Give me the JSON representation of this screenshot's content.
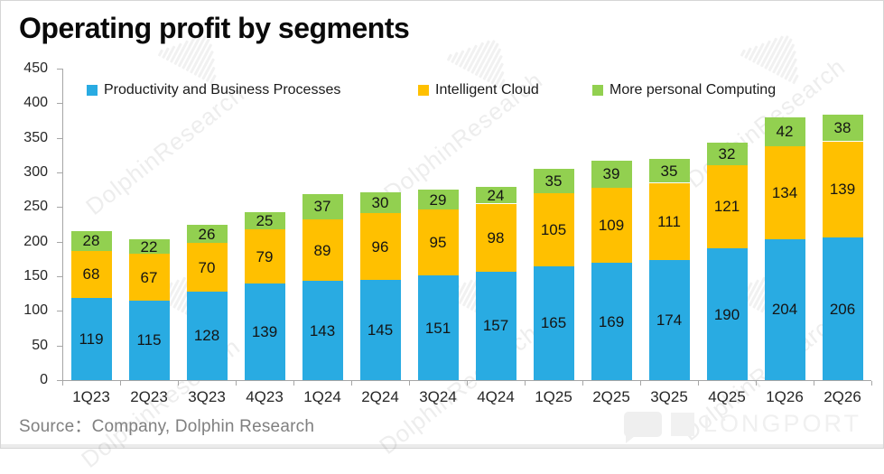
{
  "title": "Operating profit by segments",
  "source": "Source：Company, Dolphin Research",
  "brand": {
    "name": "LONGPORT"
  },
  "watermark": {
    "text": "DolphinResearch",
    "logo": "dolphin-fan-logo"
  },
  "colors": {
    "blue": "#29ABE2",
    "yellow": "#FFC000",
    "green": "#92D050",
    "axis": "#A6A6A6",
    "label": "#141414",
    "source_text": "#808080"
  },
  "chart_data": {
    "type": "bar",
    "stacked": true,
    "title": "Operating profit by segments",
    "xlabel": "",
    "ylabel": "",
    "ylim": [
      0,
      450
    ],
    "ytick_step": 50,
    "grid": false,
    "legend_position": "top",
    "categories": [
      "1Q23",
      "2Q23",
      "3Q23",
      "4Q23",
      "1Q24",
      "2Q24",
      "3Q24",
      "4Q24",
      "1Q25",
      "2Q25",
      "3Q25",
      "4Q25",
      "1Q26",
      "2Q26"
    ],
    "series": [
      {
        "name": "Productivity and Business Processes",
        "color": "#29ABE2",
        "values": [
          119,
          115,
          128,
          139,
          143,
          145,
          151,
          157,
          165,
          169,
          174,
          190,
          204,
          206
        ]
      },
      {
        "name": "Intelligent Cloud",
        "color": "#FFC000",
        "values": [
          68,
          67,
          70,
          79,
          89,
          96,
          95,
          98,
          105,
          109,
          111,
          121,
          134,
          139
        ]
      },
      {
        "name": "More personal Computing",
        "color": "#92D050",
        "values": [
          28,
          22,
          26,
          25,
          37,
          30,
          29,
          24,
          35,
          39,
          35,
          32,
          42,
          38
        ]
      }
    ]
  }
}
